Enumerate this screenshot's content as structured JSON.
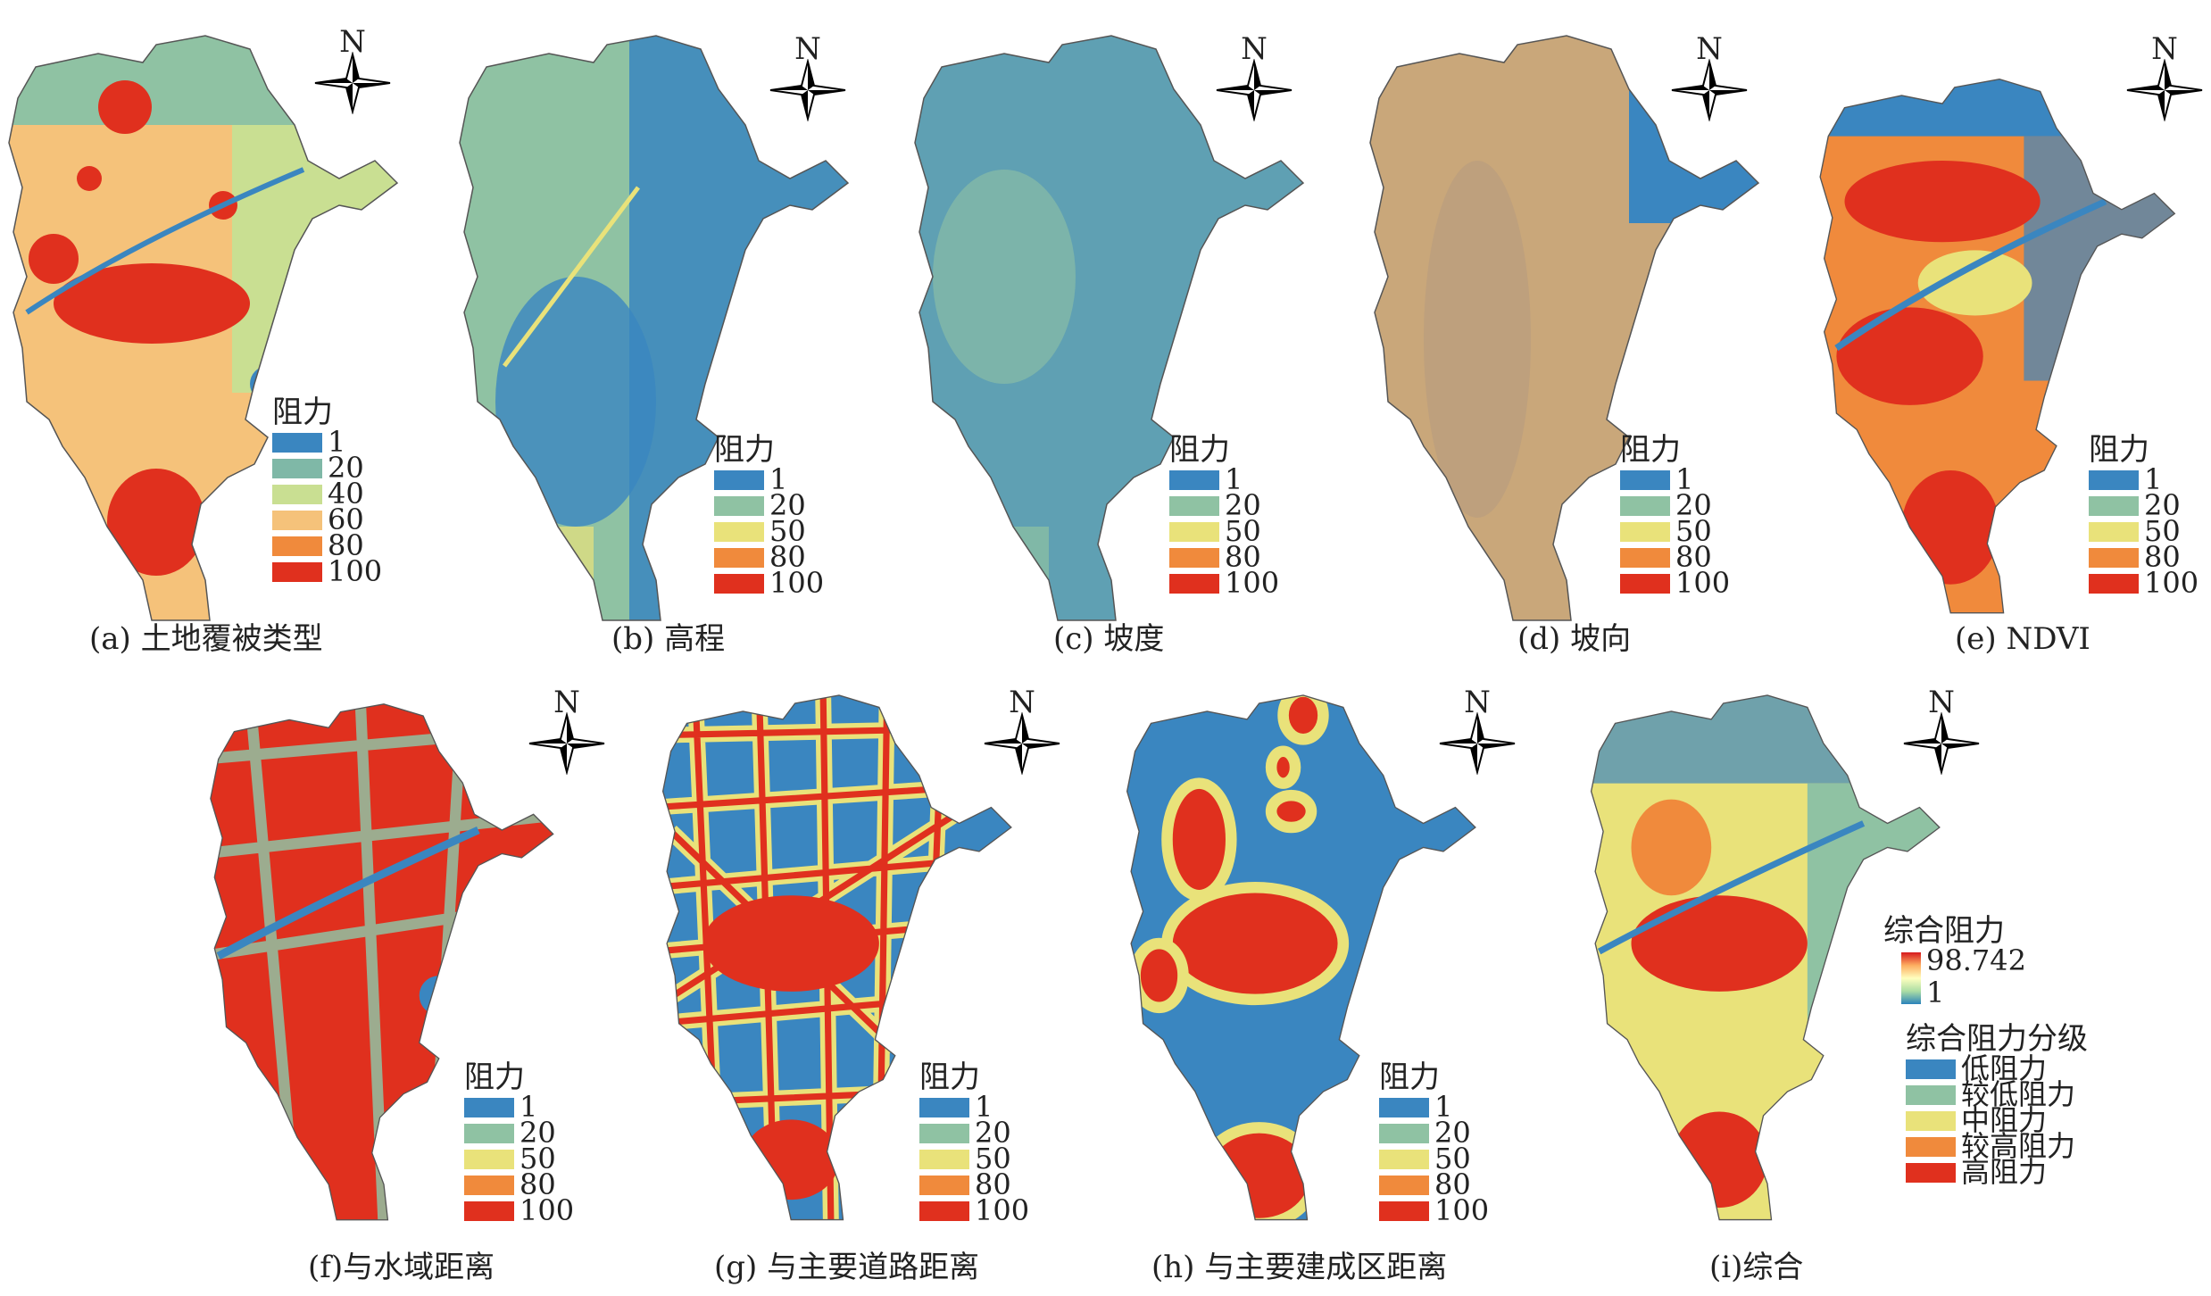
{
  "north_label": "N",
  "palette": {
    "blue": "#3a86c0",
    "green": "#8fc2a3",
    "yellow": "#e9e27a",
    "orange": "#f08a3c",
    "red": "#e0301e",
    "tan": "#c9a77a",
    "pale_blue": "#b7d7e8"
  },
  "panels": {
    "a": {
      "caption": "(a) 土地覆被类型",
      "legend_title": "阻力",
      "legend_items": [
        {
          "label": "1",
          "color": "#3a86c0"
        },
        {
          "label": "20",
          "color": "#7fb8a7"
        },
        {
          "label": "40",
          "color": "#c9df92"
        },
        {
          "label": "60",
          "color": "#f5c27a"
        },
        {
          "label": "80",
          "color": "#f08a3c"
        },
        {
          "label": "100",
          "color": "#e0301e"
        }
      ]
    },
    "b": {
      "caption": "(b) 高程",
      "legend_title": "阻力",
      "legend_items": [
        {
          "label": "1",
          "color": "#3a86c0"
        },
        {
          "label": "20",
          "color": "#8fc2a3"
        },
        {
          "label": "50",
          "color": "#e9e27a"
        },
        {
          "label": "80",
          "color": "#f08a3c"
        },
        {
          "label": "100",
          "color": "#e0301e"
        }
      ]
    },
    "c": {
      "caption": "(c) 坡度",
      "legend_title": "阻力",
      "legend_items": [
        {
          "label": "1",
          "color": "#3a86c0"
        },
        {
          "label": "20",
          "color": "#8fc2a3"
        },
        {
          "label": "50",
          "color": "#e9e27a"
        },
        {
          "label": "80",
          "color": "#f08a3c"
        },
        {
          "label": "100",
          "color": "#e0301e"
        }
      ]
    },
    "d": {
      "caption": "(d) 坡向",
      "legend_title": "阻力",
      "legend_items": [
        {
          "label": "1",
          "color": "#3a86c0"
        },
        {
          "label": "20",
          "color": "#8fc2a3"
        },
        {
          "label": "50",
          "color": "#e9e27a"
        },
        {
          "label": "80",
          "color": "#f08a3c"
        },
        {
          "label": "100",
          "color": "#e0301e"
        }
      ]
    },
    "e": {
      "caption": "(e) NDVI",
      "legend_title": "阻力",
      "legend_items": [
        {
          "label": "1",
          "color": "#3a86c0"
        },
        {
          "label": "20",
          "color": "#8fc2a3"
        },
        {
          "label": "50",
          "color": "#e9e27a"
        },
        {
          "label": "80",
          "color": "#f08a3c"
        },
        {
          "label": "100",
          "color": "#e0301e"
        }
      ]
    },
    "f": {
      "caption": "(f)与水域距离",
      "legend_title": "阻力",
      "legend_items": [
        {
          "label": "1",
          "color": "#3a86c0"
        },
        {
          "label": "20",
          "color": "#8fc2a3"
        },
        {
          "label": "50",
          "color": "#e9e27a"
        },
        {
          "label": "80",
          "color": "#f08a3c"
        },
        {
          "label": "100",
          "color": "#e0301e"
        }
      ]
    },
    "g": {
      "caption": "(g) 与主要道路距离",
      "legend_title": "阻力",
      "legend_items": [
        {
          "label": "1",
          "color": "#3a86c0"
        },
        {
          "label": "20",
          "color": "#8fc2a3"
        },
        {
          "label": "50",
          "color": "#e9e27a"
        },
        {
          "label": "80",
          "color": "#f08a3c"
        },
        {
          "label": "100",
          "color": "#e0301e"
        }
      ]
    },
    "h": {
      "caption": "(h) 与主要建成区距离",
      "legend_title": "阻力",
      "legend_items": [
        {
          "label": "1",
          "color": "#3a86c0"
        },
        {
          "label": "20",
          "color": "#8fc2a3"
        },
        {
          "label": "50",
          "color": "#e9e27a"
        },
        {
          "label": "80",
          "color": "#f08a3c"
        },
        {
          "label": "100",
          "color": "#e0301e"
        }
      ]
    },
    "i": {
      "caption": "(i)综合",
      "gradient_title": "综合阻力",
      "gradient_max": "98.742",
      "gradient_min": "1",
      "class_title": "综合阻力分级",
      "class_items": [
        {
          "label": "低阻力",
          "color": "#3a86c0"
        },
        {
          "label": "较低阻力",
          "color": "#8fc2a3"
        },
        {
          "label": "中阻力",
          "color": "#e9e27a"
        },
        {
          "label": "较高阻力",
          "color": "#f08a3c"
        },
        {
          "label": "高阻力",
          "color": "#e0301e"
        }
      ]
    }
  }
}
